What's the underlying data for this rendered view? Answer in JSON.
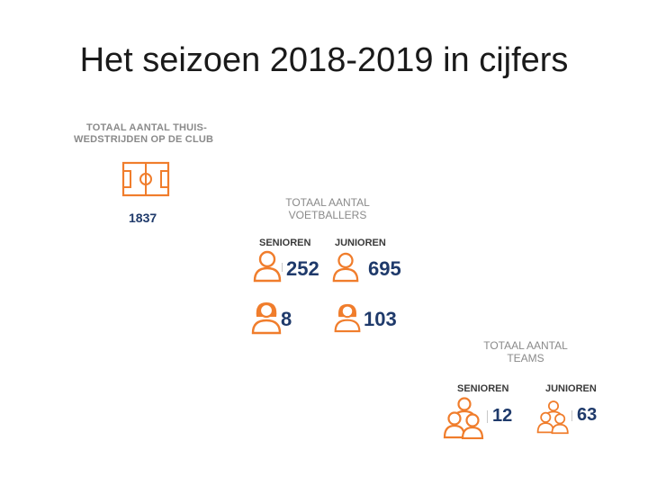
{
  "slide": {
    "title": "Het seizoen 2018-2019 in cijfers"
  },
  "home_matches": {
    "caption_line1": "TOTAAL AANTAL THUIS-",
    "caption_line2": "WEDSTRIJDEN OP DE CLUB",
    "value": "1837",
    "icon": "football-field-icon"
  },
  "players": {
    "caption_line1": "TOTAAL AANTAL",
    "caption_line2": "VOETBALLERS",
    "seniors_label": "SENIOREN",
    "juniors_label": "JUNIOREN",
    "seniors_male": "252",
    "juniors_male": "695",
    "seniors_female": "8",
    "juniors_female": "103",
    "colors": {
      "accent": "#f07d2c",
      "number": "#1f3a6b"
    }
  },
  "teams": {
    "caption_line1": "TOTAAL AANTAL",
    "caption_line2": "TEAMS",
    "seniors_label": "SENIOREN",
    "juniors_label": "JUNIOREN",
    "seniors_value": "12",
    "juniors_value": "63"
  }
}
